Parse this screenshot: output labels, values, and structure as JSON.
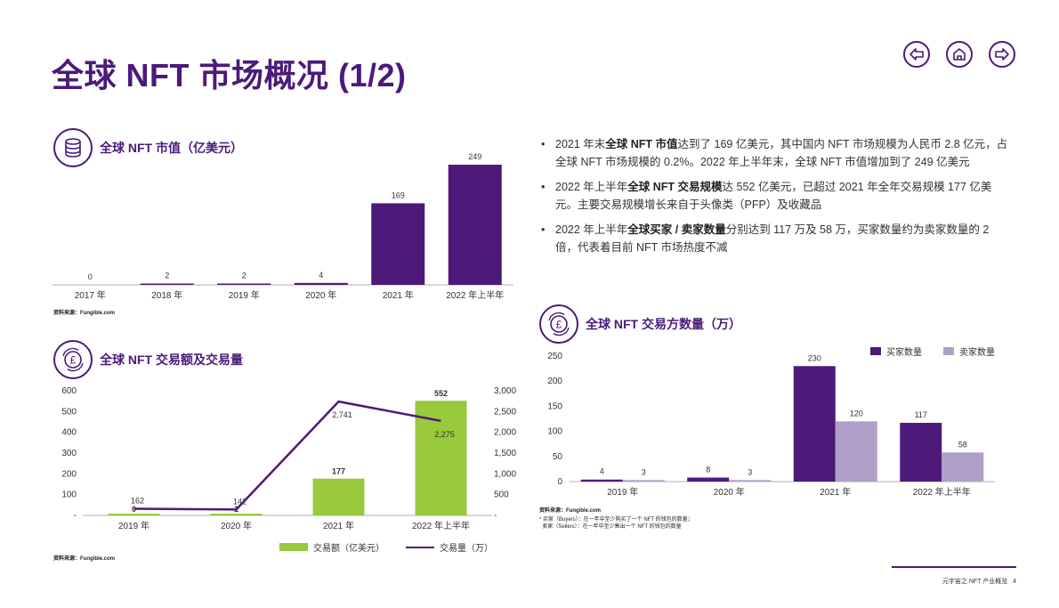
{
  "page": {
    "title": "全球 NFT 市场概况 (1/2)",
    "footer": "元宇宙之 NFT 产业概览",
    "page_number": "4"
  },
  "nav": {
    "back_icon": "arrow-left-icon",
    "home_icon": "home-icon",
    "forward_icon": "arrow-right-icon"
  },
  "colors": {
    "brand_purple": "#4b1a7a",
    "chart_purple": "#4d1a7a",
    "light_purple": "#b09fc8",
    "green": "#99c93c"
  },
  "section1": {
    "icon": "database-icon",
    "heading": "全球 NFT 市值（亿美元）",
    "source": "资料来源：Fungible.com"
  },
  "section2": {
    "icon": "pound-exchange-icon",
    "heading": "全球 NFT 交易额及交易量",
    "source": "资料来源：Fungible.com"
  },
  "section3": {
    "icon": "pound-exchange-icon",
    "heading": "全球 NFT 交易方数量（万）",
    "source": "资料来源：Fungible.com",
    "footnote_line1": "* 买家（Buyers）：在一年中至少购买了一个 NFT 的钱包的数量；",
    "footnote_line2": "  卖家（Sellers）：在一年中至少售出一个 NFT 的钱包的数量"
  },
  "bullets": [
    {
      "pre": "2021 年末",
      "bold": "全球 NFT 市值",
      "post": "达到了 169 亿美元，其中国内 NFT 市场规模为人民币 2.8 亿元，占全球 NFT 市场规模的 0.2%。2022 年上半年末，全球 NFT 市值增加到了 249 亿美元"
    },
    {
      "pre": "2022 年上半年",
      "bold": "全球 NFT 交易规模",
      "post": "达 552 亿美元，已超过 2021 年全年交易规模 177 亿美元。主要交易规模增长来自于头像类（PFP）及收藏品"
    },
    {
      "pre": "2022 年上半年",
      "bold": "全球买家 / 卖家数量",
      "post": "分别达到 117 万及 58 万，买家数量约为卖家数量的 2 倍，代表着目前 NFT 市场热度不减"
    }
  ],
  "chart_data": [
    {
      "type": "bar",
      "title": "全球 NFT 市值（亿美元）",
      "categories": [
        "2017 年",
        "2018 年",
        "2019 年",
        "2020 年",
        "2021 年",
        "2022 年上半年"
      ],
      "values": [
        0,
        2,
        2,
        4,
        169,
        249
      ],
      "ylim": [
        0,
        249
      ],
      "grid": false
    },
    {
      "type": "bar",
      "title": "全球 NFT 交易额及交易量",
      "categories": [
        "2019 年",
        "2020 年",
        "2021 年",
        "2022 年上半年"
      ],
      "y_ticks_left": [
        "600",
        "500",
        "400",
        "300",
        "200",
        "100",
        "-"
      ],
      "y_ticks_right": [
        "3,000",
        "2,500",
        "2,000",
        "1,500",
        "1,000",
        "500",
        "-"
      ],
      "ylim_left": [
        0,
        600
      ],
      "ylim_right": [
        0,
        3000
      ],
      "series": [
        {
          "name": "交易额（亿美元）",
          "type": "bar",
          "axis": "left",
          "values": [
            0,
            1,
            177,
            552
          ],
          "labels": [
            "0",
            "1",
            "177",
            "552"
          ]
        },
        {
          "name": "交易量（万）",
          "type": "line",
          "axis": "right",
          "values": [
            162,
            142,
            2741,
            2275
          ],
          "labels": [
            "162",
            "142",
            "2,741",
            "2,275"
          ]
        }
      ],
      "legend": "bottom",
      "grid": false
    },
    {
      "type": "bar",
      "title": "全球 NFT 交易方数量（万）",
      "categories": [
        "2019 年",
        "2020 年",
        "2021 年",
        "2022 年上半年"
      ],
      "y_ticks": [
        "250",
        "200",
        "150",
        "100",
        "50",
        "0"
      ],
      "ylim": [
        0,
        250
      ],
      "series": [
        {
          "name": "买家数量",
          "values": [
            4,
            8,
            230,
            117
          ]
        },
        {
          "name": "卖家数量",
          "values": [
            3,
            3,
            120,
            58
          ]
        }
      ],
      "legend": "top-right",
      "grid": false
    }
  ]
}
